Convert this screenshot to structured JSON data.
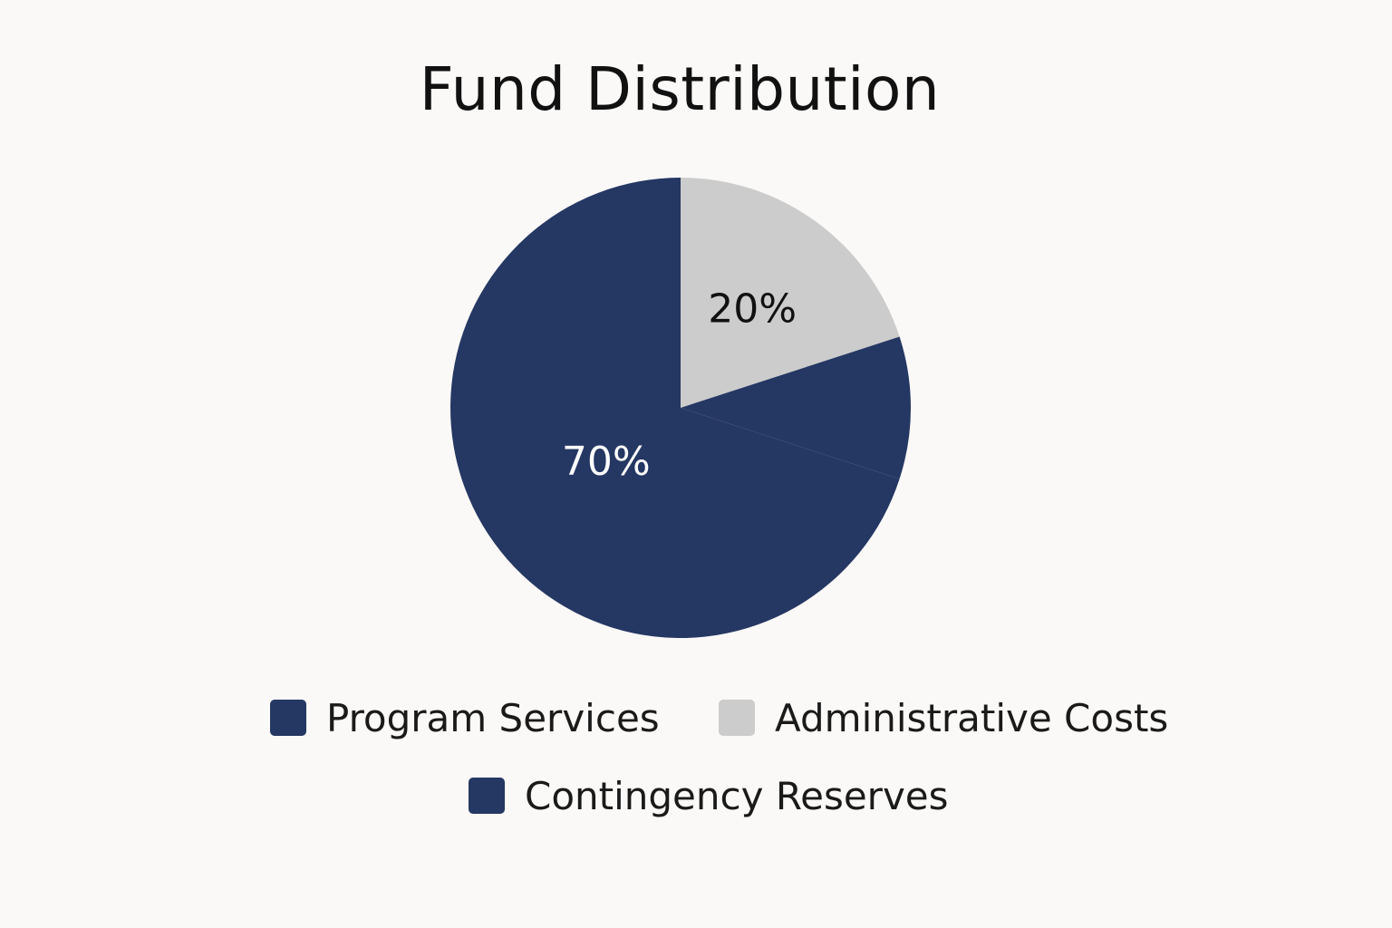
{
  "chart_data": {
    "type": "pie",
    "title": "Fund Distribution",
    "slices": [
      {
        "label": "Administrative Costs",
        "value": 20,
        "display": "20%",
        "color": "#cccccc",
        "label_color": "#111111"
      },
      {
        "label": "Contingency Reserves",
        "value": 10,
        "display": "",
        "color": "#253763",
        "label_color": "#ffffff"
      },
      {
        "label": "Program Services",
        "value": 70,
        "display": "70%",
        "color": "#253763",
        "label_color": "#ffffff"
      }
    ],
    "legend": {
      "placement": "bottom",
      "items": [
        {
          "label": "Program Services",
          "color": "#253763"
        },
        {
          "label": "Administrative Costs",
          "color": "#cccccc"
        },
        {
          "label": "Contingency Reserves",
          "color": "#253763"
        }
      ]
    }
  }
}
